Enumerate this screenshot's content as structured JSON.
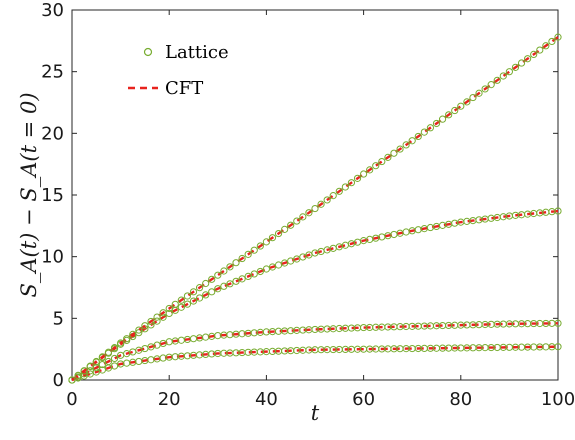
{
  "chart_data": {
    "type": "line",
    "title": "",
    "xlabel": "t",
    "ylabel": "S_A(t) − S_A(t = 0)",
    "xlim": [
      0,
      100
    ],
    "ylim": [
      0,
      30
    ],
    "x_ticks": [
      0,
      20,
      40,
      60,
      80,
      100
    ],
    "y_ticks": [
      0,
      5,
      10,
      15,
      20,
      25,
      30
    ],
    "grid": false,
    "legend": {
      "position": "top-left",
      "entries": [
        "Lattice",
        "CFT"
      ]
    },
    "colors": {
      "lattice": "#77ac30",
      "cft": "#e8231e"
    },
    "series_values": {
      "x": [
        0,
        10,
        20,
        30,
        40,
        50,
        60,
        70,
        80,
        90,
        100
      ],
      "curve_1": [
        0,
        3.0,
        5.8,
        8.5,
        11.2,
        13.9,
        16.7,
        19.4,
        22.2,
        25.0,
        27.8
      ],
      "curve_2": [
        0,
        2.9,
        5.4,
        7.4,
        9.0,
        10.3,
        11.3,
        12.1,
        12.8,
        13.3,
        13.7
      ],
      "curve_3": [
        0,
        2.0,
        3.1,
        3.6,
        3.9,
        4.1,
        4.25,
        4.35,
        4.45,
        4.55,
        4.6
      ],
      "curve_4": [
        0,
        1.3,
        1.85,
        2.15,
        2.3,
        2.45,
        2.5,
        2.55,
        2.6,
        2.65,
        2.7
      ]
    }
  }
}
